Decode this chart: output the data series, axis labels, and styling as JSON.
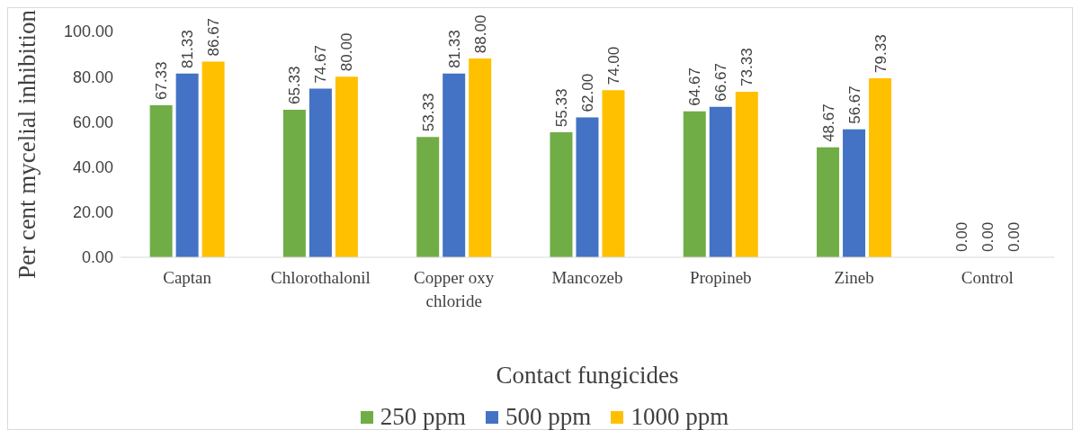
{
  "chart_data": {
    "type": "bar",
    "xlabel": "Contact fungicides",
    "ylabel": "Per cent mycelial inhibition",
    "categories": [
      "Captan",
      "Chlorothalonil",
      "Copper oxy chloride",
      "Mancozeb",
      "Propineb",
      "Zineb",
      "Control"
    ],
    "series": [
      {
        "name": "250 ppm",
        "color": "#70ad47",
        "values": [
          67.33,
          65.33,
          53.33,
          55.33,
          64.67,
          48.67,
          0
        ],
        "value_labels": [
          "67.33",
          "65.33",
          "53.33",
          "55.33",
          "64.67",
          "48.67",
          "0.00"
        ]
      },
      {
        "name": "500 ppm",
        "color": "#4472c4",
        "values": [
          81.33,
          74.67,
          81.33,
          62,
          66.67,
          56.67,
          0
        ],
        "value_labels": [
          "81.33",
          "74.67",
          "81.33",
          "62.00",
          "66.67",
          "56.67",
          "0.00"
        ]
      },
      {
        "name": "1000 ppm",
        "color": "#ffc000",
        "values": [
          86.67,
          80,
          88,
          74,
          73.33,
          79.33,
          0
        ],
        "value_labels": [
          "86.67",
          "80.00",
          "88.00",
          "74.00",
          "73.33",
          "79.33",
          "0.00"
        ]
      }
    ],
    "ylim": [
      0,
      100
    ],
    "yticks": [
      {
        "value": 0,
        "label": "0.00"
      },
      {
        "value": 20,
        "label": "20.00"
      },
      {
        "value": 40,
        "label": "40.00"
      },
      {
        "value": 60,
        "label": "60.00"
      },
      {
        "value": 80,
        "label": "80.00"
      },
      {
        "value": 100,
        "label": "100.00"
      }
    ],
    "grid": false,
    "legend": "bottom"
  }
}
